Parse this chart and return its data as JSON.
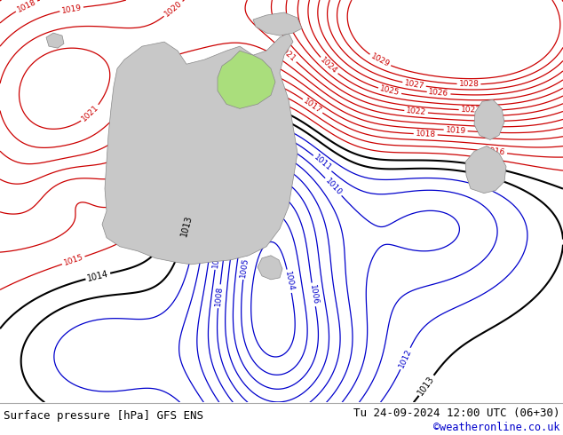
{
  "title_left": "Surface pressure [hPa] GFS ENS",
  "title_right": "Tu 24-09-2024 12:00 UTC (06+30)",
  "copyright": "©weatheronline.co.uk",
  "bg_color": "#aade7c",
  "land_color": "#c8c8c8",
  "contour_color_red": "#cc0000",
  "contour_color_blue": "#0000cc",
  "contour_color_black": "#000000",
  "bottom_bar_color": "#ffffff",
  "bottom_text_color": "#000000",
  "copyright_color": "#0000cc",
  "figsize": [
    6.34,
    4.9
  ],
  "dpi": 100
}
